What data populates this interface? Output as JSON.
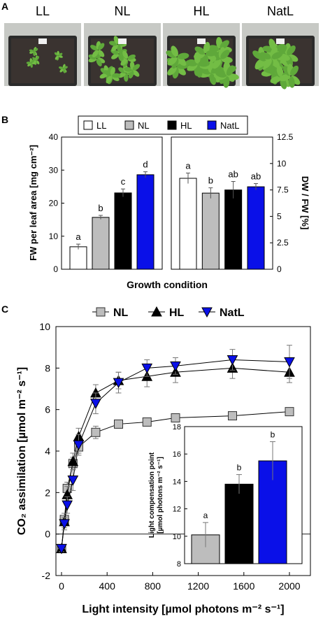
{
  "panel_a": {
    "letter": "A",
    "photos": [
      {
        "label": "LL",
        "plants": "sparse"
      },
      {
        "label": "NL",
        "plants": "medium"
      },
      {
        "label": "HL",
        "plants": "dense"
      },
      {
        "label": "NatL",
        "plants": "dense"
      }
    ]
  },
  "colors": {
    "LL": "#ffffff",
    "NL": "#bdbdbd",
    "HL": "#000000",
    "NatL": "#0a10e8"
  },
  "chart_data": [
    {
      "id": "B-left",
      "type": "bar",
      "panel": "B",
      "legend": [
        "LL",
        "NL",
        "HL",
        "NatL"
      ],
      "categories": [
        "LL",
        "NL",
        "HL",
        "NatL"
      ],
      "values": [
        6.8,
        15.7,
        23.1,
        28.6
      ],
      "errors": [
        0.8,
        0.6,
        1.2,
        0.9
      ],
      "letters": [
        "a",
        "b",
        "c",
        "d"
      ],
      "ylabel": "FW per leaf area [mg cm⁻²]",
      "xlabel": "Growth condition",
      "ylim": [
        0,
        40
      ],
      "yticks": [
        0,
        10,
        20,
        30,
        40
      ]
    },
    {
      "id": "B-right",
      "type": "bar",
      "panel": "B",
      "categories": [
        "LL",
        "NL",
        "HL",
        "NatL"
      ],
      "values": [
        8.6,
        7.2,
        7.5,
        7.8
      ],
      "errors": [
        0.5,
        0.5,
        0.8,
        0.3
      ],
      "letters": [
        "a",
        "b",
        "ab",
        "ab"
      ],
      "ylabel": "DW / FW [%]",
      "ylim": [
        0,
        12.5
      ],
      "yticks": [
        "0",
        "2.5",
        "5",
        "7.5",
        "10",
        "12.5"
      ]
    },
    {
      "id": "C-main",
      "type": "line",
      "panel": "C",
      "xlabel": "Light intensity [µmol photons m⁻² s⁻¹]",
      "ylabel": "CO₂ assimilation [µmol m⁻² s⁻¹]",
      "xlim": [
        0,
        2000
      ],
      "ylim": [
        -2,
        10
      ],
      "xticks": [
        0,
        400,
        800,
        1200,
        1600,
        2000
      ],
      "yticks": [
        -2,
        0,
        2,
        4,
        6,
        8,
        10
      ],
      "x": [
        0,
        25,
        50,
        100,
        150,
        300,
        500,
        750,
        1000,
        1500,
        2000
      ],
      "series": [
        {
          "name": "NL",
          "marker": "square",
          "color": "#bdbdbd",
          "values": [
            -0.7,
            0.7,
            2.2,
            3.4,
            4.2,
            4.9,
            5.3,
            5.4,
            5.6,
            5.7,
            5.9
          ],
          "errors": [
            0.15,
            0.3,
            0.3,
            0.3,
            0.3,
            0.3,
            0.2,
            0.15,
            0.1,
            0.1,
            0.15
          ]
        },
        {
          "name": "HL",
          "marker": "triangle-up",
          "color": "#000000",
          "values": [
            -0.7,
            0.6,
            1.9,
            3.5,
            4.7,
            6.8,
            7.4,
            7.6,
            7.8,
            8.0,
            7.8
          ],
          "errors": [
            0.15,
            0.3,
            0.4,
            0.4,
            0.4,
            0.4,
            0.4,
            0.5,
            0.5,
            0.5,
            0.5
          ]
        },
        {
          "name": "NatL",
          "marker": "triangle-down",
          "color": "#0a10e8",
          "values": [
            -0.7,
            0.5,
            1.4,
            2.6,
            4.3,
            6.3,
            7.3,
            8.0,
            8.1,
            8.4,
            8.3
          ],
          "errors": [
            0.15,
            0.3,
            0.4,
            0.5,
            0.5,
            0.5,
            0.5,
            0.4,
            0.4,
            0.5,
            0.8
          ]
        }
      ]
    },
    {
      "id": "C-inset",
      "type": "bar",
      "panel": "C",
      "categories": [
        "NL",
        "HL",
        "NatL"
      ],
      "values": [
        10.1,
        13.8,
        15.5
      ],
      "errors": [
        0.9,
        0.7,
        1.4
      ],
      "letters": [
        "a",
        "b",
        "b"
      ],
      "ylabel": "Light compensation point [µmol photons m⁻² s⁻¹]",
      "ylim": [
        8,
        18
      ],
      "yticks": [
        8,
        10,
        12,
        14,
        16,
        18
      ]
    }
  ]
}
